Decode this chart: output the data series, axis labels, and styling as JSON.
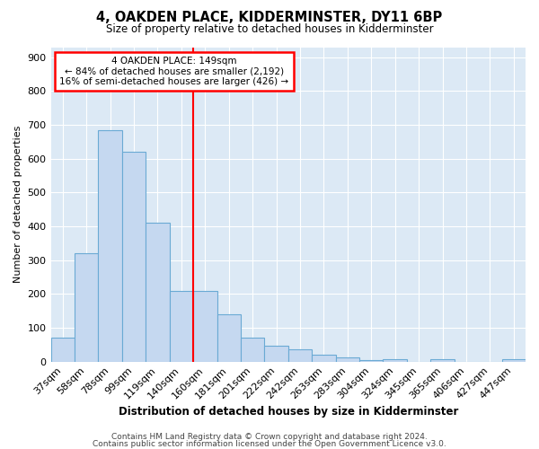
{
  "title": "4, OAKDEN PLACE, KIDDERMINSTER, DY11 6BP",
  "subtitle": "Size of property relative to detached houses in Kidderminster",
  "xlabel": "Distribution of detached houses by size in Kidderminster",
  "ylabel": "Number of detached properties",
  "categories": [
    "37sqm",
    "58sqm",
    "78sqm",
    "99sqm",
    "119sqm",
    "140sqm",
    "160sqm",
    "181sqm",
    "201sqm",
    "222sqm",
    "242sqm",
    "263sqm",
    "283sqm",
    "304sqm",
    "324sqm",
    "345sqm",
    "365sqm",
    "406sqm",
    "427sqm",
    "447sqm"
  ],
  "values": [
    70,
    320,
    685,
    620,
    410,
    210,
    210,
    140,
    70,
    48,
    35,
    20,
    12,
    3,
    8,
    0,
    8,
    0,
    0,
    8
  ],
  "bar_color": "#c5d8f0",
  "bar_edge_color": "#6aaad4",
  "vline_x": 5.5,
  "vline_color": "red",
  "annotation_line1": "4 OAKDEN PLACE: 149sqm",
  "annotation_line2": "← 84% of detached houses are smaller (2,192)",
  "annotation_line3": "16% of semi-detached houses are larger (426) →",
  "annotation_box_color": "white",
  "annotation_box_edge_color": "red",
  "ylim": [
    0,
    930
  ],
  "yticks": [
    0,
    100,
    200,
    300,
    400,
    500,
    600,
    700,
    800,
    900
  ],
  "bg_color": "#dce9f5",
  "grid_color": "#ffffff",
  "footer_line1": "Contains HM Land Registry data © Crown copyright and database right 2024.",
  "footer_line2": "Contains public sector information licensed under the Open Government Licence v3.0."
}
